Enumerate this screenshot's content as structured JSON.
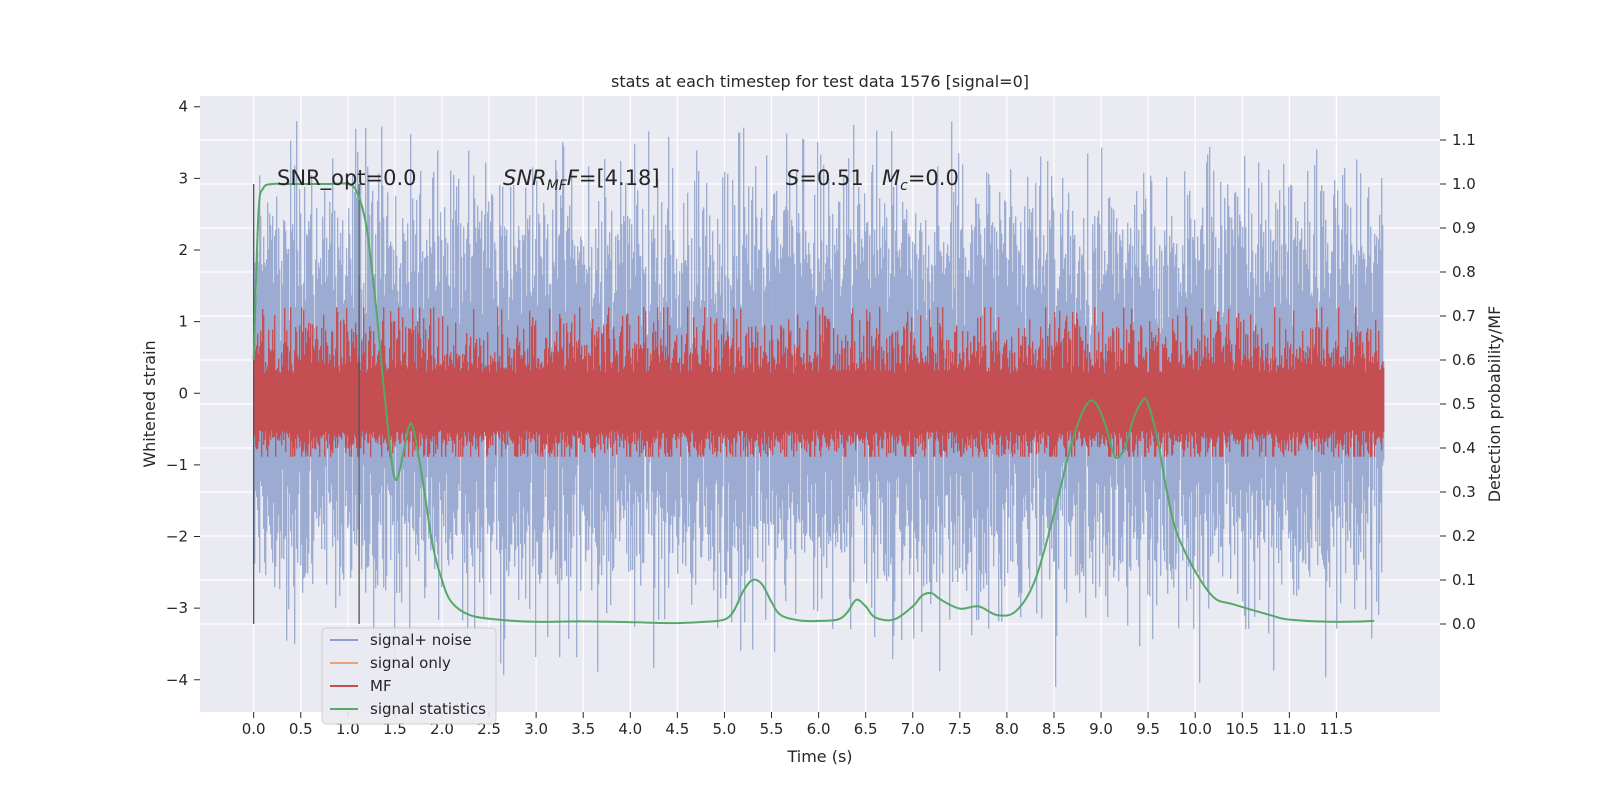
{
  "chart_data": {
    "type": "line",
    "title": "stats at each timestep for test data 1576 [signal=0]",
    "xlabel": "Time (s)",
    "ylabel": "Whitened strain",
    "y2label": "Detection probability/MF",
    "xlim": [
      -0.57,
      12.6
    ],
    "ylim": [
      -4.45,
      4.15
    ],
    "y2lim": [
      -0.2,
      1.2
    ],
    "xticks": [
      0.0,
      0.5,
      1.0,
      1.5,
      2.0,
      2.5,
      3.0,
      3.5,
      4.0,
      4.5,
      5.0,
      5.5,
      6.0,
      6.5,
      7.0,
      7.5,
      8.0,
      8.5,
      9.0,
      9.5,
      10.0,
      10.5,
      11.0,
      11.5
    ],
    "xtick_labels": [
      "0.0",
      "0.5",
      "1.0",
      "1.5",
      "2.0",
      "2.5",
      "3.0",
      "3.5",
      "4.0",
      "4.5",
      "5.0",
      "5.5",
      "6.0",
      "6.5",
      "7.0",
      "7.5",
      "8.0",
      "8.5",
      "9.0",
      "9.5",
      "10.0",
      "10.5",
      "11.0",
      "11.5"
    ],
    "yticks": [
      -4,
      -3,
      -2,
      -1,
      0,
      1,
      2,
      3,
      4
    ],
    "ytick_labels": [
      "−4",
      "−3",
      "−2",
      "−1",
      "0",
      "1",
      "2",
      "3",
      "4"
    ],
    "y2ticks": [
      0.0,
      0.1,
      0.2,
      0.3,
      0.4,
      0.5,
      0.6,
      0.7,
      0.8,
      0.9,
      1.0,
      1.1
    ],
    "y2tick_labels": [
      "0.0",
      "0.1",
      "0.2",
      "0.3",
      "0.4",
      "0.5",
      "0.6",
      "0.7",
      "0.8",
      "0.9",
      "1.0",
      "1.1"
    ],
    "grid": true,
    "legend_position": "lower-left",
    "noise": {
      "name": "signal+ noise",
      "color": "#8da0cb",
      "x_range": [
        0.0,
        12.0
      ],
      "typical_envelope": [
        -1.9,
        2.0
      ],
      "max_peak": 3.8,
      "min_peak": -4.1
    },
    "signal_only": {
      "name": "signal only",
      "color": "#e9a27e",
      "values": []
    },
    "mf": {
      "name": "MF",
      "color": "#c44e52",
      "x_range": [
        0.0,
        12.0
      ],
      "baseline_prob": 0.5,
      "typical_peak_prob": 0.66,
      "max_peak_prob": 0.72
    },
    "signal_statistics": {
      "name": "signal statistics",
      "color": "#55a868",
      "axis": "right",
      "x": [
        0.0,
        0.05,
        0.1,
        0.2,
        0.3,
        0.5,
        0.8,
        1.0,
        1.1,
        1.2,
        1.3,
        1.4,
        1.5,
        1.6,
        1.65,
        1.7,
        1.8,
        1.9,
        2.0,
        2.1,
        2.3,
        2.6,
        3.0,
        3.5,
        4.0,
        4.5,
        4.8,
        5.0,
        5.1,
        5.2,
        5.3,
        5.4,
        5.5,
        5.6,
        5.8,
        6.0,
        6.2,
        6.3,
        6.4,
        6.5,
        6.6,
        6.8,
        7.0,
        7.1,
        7.2,
        7.3,
        7.5,
        7.7,
        7.9,
        8.1,
        8.3,
        8.5,
        8.7,
        8.85,
        8.95,
        9.05,
        9.15,
        9.25,
        9.35,
        9.45,
        9.5,
        9.6,
        9.7,
        9.8,
        10.0,
        10.2,
        10.4,
        10.8,
        11.0,
        11.5,
        11.9
      ],
      "y": [
        0.6,
        0.93,
        0.99,
        1.0,
        1.0,
        1.0,
        1.0,
        1.0,
        0.98,
        0.9,
        0.72,
        0.5,
        0.33,
        0.4,
        0.45,
        0.44,
        0.32,
        0.18,
        0.1,
        0.05,
        0.02,
        0.01,
        0.005,
        0.006,
        0.004,
        0.002,
        0.005,
        0.01,
        0.03,
        0.075,
        0.1,
        0.09,
        0.05,
        0.02,
        0.008,
        0.007,
        0.01,
        0.025,
        0.055,
        0.04,
        0.015,
        0.01,
        0.04,
        0.065,
        0.07,
        0.055,
        0.035,
        0.04,
        0.02,
        0.03,
        0.1,
        0.25,
        0.42,
        0.5,
        0.5,
        0.45,
        0.38,
        0.4,
        0.47,
        0.51,
        0.5,
        0.42,
        0.3,
        0.21,
        0.12,
        0.06,
        0.045,
        0.02,
        0.01,
        0.005,
        0.007
      ]
    },
    "annotations": {
      "snr_opt": "SNR_opt=0.0",
      "snr_mf_label": "SNR",
      "snr_mf_sub": "MF",
      "snr_mf_value": "=[4.18]",
      "s_label": "S",
      "s_value": "=0.51",
      "mc_label": "M",
      "mc_sub": "c",
      "mc_value": "=0.0"
    }
  }
}
